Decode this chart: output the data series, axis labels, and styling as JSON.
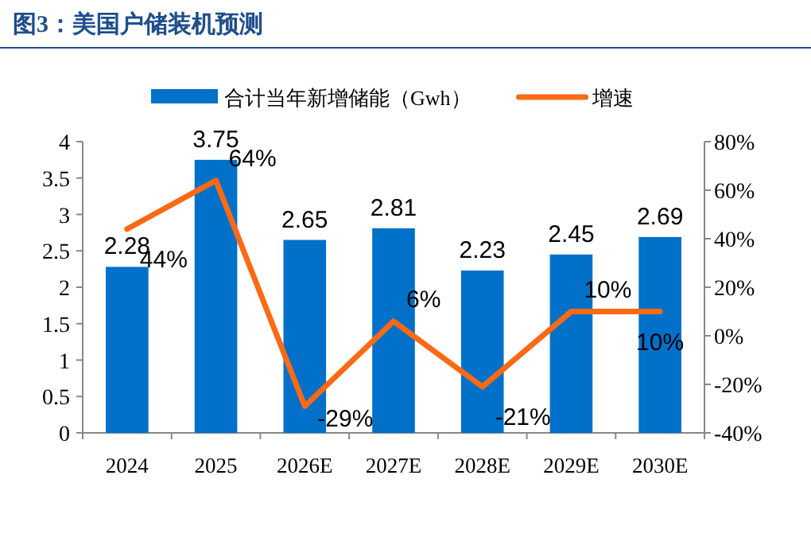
{
  "chart_data": {
    "type": "bar",
    "title": "图3：美国户储装机预测",
    "categories": [
      "2024",
      "2025",
      "2026E",
      "2027E",
      "2028E",
      "2029E",
      "2030E"
    ],
    "series": [
      {
        "name": "合计当年新增储能（Gwh）",
        "color": "#0070c8",
        "values": [
          2.28,
          3.75,
          2.65,
          2.81,
          2.23,
          2.45,
          2.69
        ],
        "value_labels": [
          "2.28",
          "3.75",
          "2.65",
          "2.81",
          "2.23",
          "2.45",
          "2.69"
        ]
      },
      {
        "name": "增速",
        "type": "line",
        "axis": "y2",
        "color": "#fa6a14",
        "values": [
          44,
          64,
          -29,
          6,
          -21,
          10,
          10
        ],
        "value_labels": [
          "44%",
          "64%",
          "-29%",
          "6%",
          "-21%",
          "10%",
          "10%"
        ]
      }
    ],
    "ylim": [
      0,
      4
    ],
    "yticks": [
      0,
      0.5,
      1,
      1.5,
      2,
      2.5,
      3,
      3.5,
      4
    ],
    "y2lim": [
      -40,
      80
    ],
    "y2ticks": [
      {
        "value": -40,
        "label": "-40%"
      },
      {
        "value": -20,
        "label": "-20%"
      },
      {
        "value": 0,
        "label": "0%"
      },
      {
        "value": 20,
        "label": "20%"
      },
      {
        "value": 40,
        "label": "40%"
      },
      {
        "value": 60,
        "label": "60%"
      },
      {
        "value": 80,
        "label": "80%"
      }
    ],
    "legend": "top",
    "grid": false
  }
}
